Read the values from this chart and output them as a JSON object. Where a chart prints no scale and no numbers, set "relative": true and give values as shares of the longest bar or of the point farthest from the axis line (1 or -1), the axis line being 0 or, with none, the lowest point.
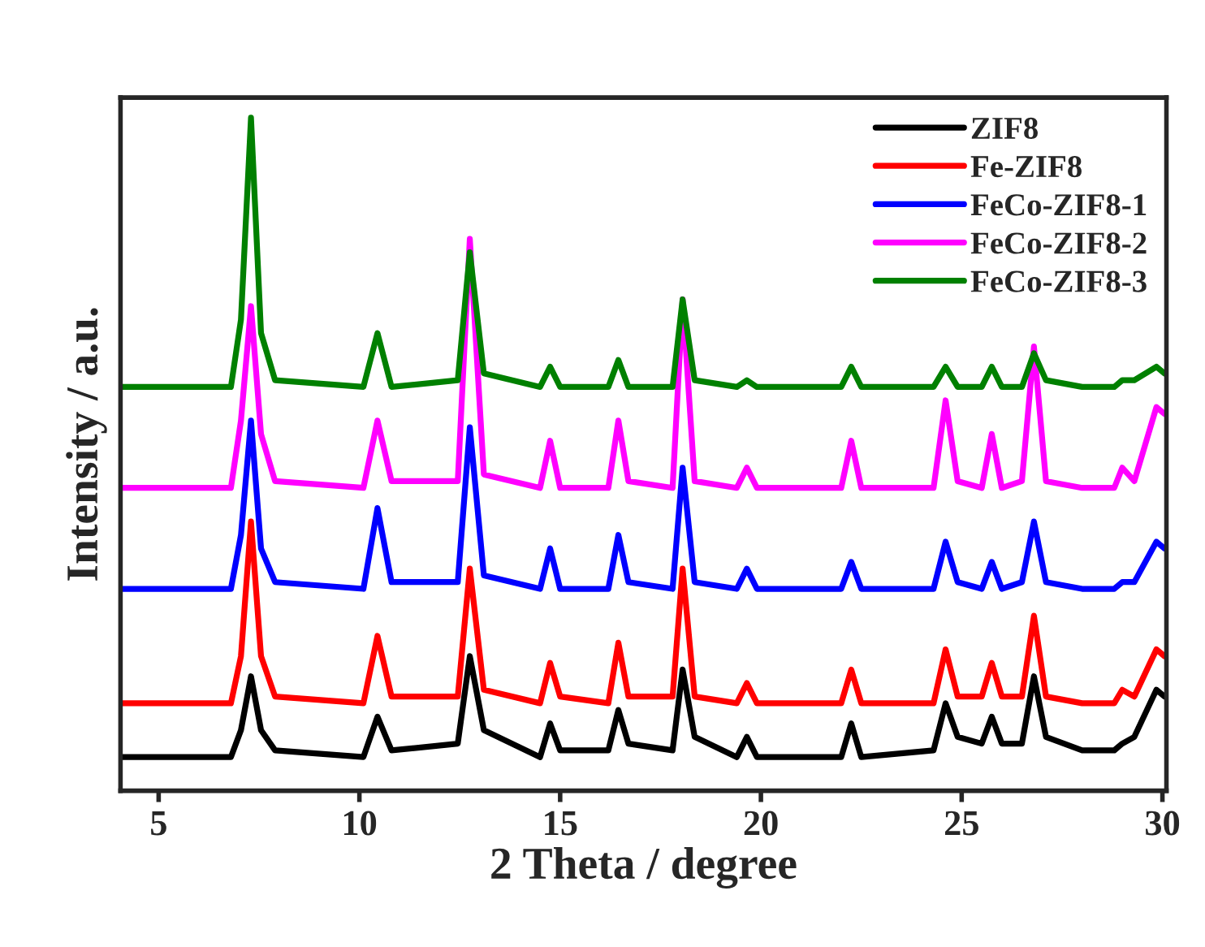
{
  "chart_data": {
    "type": "line",
    "relative": true,
    "xlabel": "2 Theta / degree",
    "ylabel": "Intensity / a.u.",
    "xlim": [
      4.05,
      30.1
    ],
    "xticks": [
      5,
      10,
      15,
      20,
      25,
      30
    ],
    "legend": "top right",
    "grid": false,
    "marker": "none",
    "line_style": "solid",
    "x": [
      4.1,
      6.8,
      7.05,
      7.3,
      7.55,
      7.9,
      10.1,
      10.45,
      10.8,
      12.45,
      12.75,
      13.1,
      14.5,
      14.75,
      15.0,
      16.2,
      16.45,
      16.7,
      17.8,
      18.05,
      18.35,
      19.4,
      19.65,
      19.9,
      22.0,
      22.25,
      22.5,
      24.3,
      24.6,
      24.9,
      25.5,
      25.75,
      26.0,
      26.5,
      26.8,
      27.1,
      28.0,
      28.8,
      29.0,
      29.3,
      29.85,
      30.05
    ],
    "series": [
      {
        "name": "ZIF8",
        "color": "#000000",
        "values": [
          0.05,
          0.05,
          0.09,
          0.17,
          0.09,
          0.06,
          0.05,
          0.11,
          0.06,
          0.07,
          0.2,
          0.09,
          0.05,
          0.1,
          0.06,
          0.06,
          0.12,
          0.07,
          0.06,
          0.18,
          0.08,
          0.05,
          0.08,
          0.05,
          0.05,
          0.1,
          0.05,
          0.06,
          0.13,
          0.08,
          0.07,
          0.11,
          0.07,
          0.07,
          0.17,
          0.08,
          0.06,
          0.06,
          0.07,
          0.08,
          0.15,
          0.14
        ]
      },
      {
        "name": "Fe-ZIF8",
        "color": "#ff0000",
        "values": [
          0.13,
          0.13,
          0.2,
          0.4,
          0.2,
          0.14,
          0.13,
          0.23,
          0.14,
          0.14,
          0.33,
          0.15,
          0.13,
          0.19,
          0.14,
          0.13,
          0.22,
          0.14,
          0.14,
          0.33,
          0.14,
          0.13,
          0.16,
          0.13,
          0.13,
          0.18,
          0.13,
          0.13,
          0.21,
          0.14,
          0.14,
          0.19,
          0.14,
          0.14,
          0.26,
          0.14,
          0.13,
          0.13,
          0.15,
          0.14,
          0.21,
          0.2
        ]
      },
      {
        "name": "FeCo-ZIF8-1",
        "color": "#0000ff",
        "values": [
          0.3,
          0.3,
          0.38,
          0.55,
          0.36,
          0.31,
          0.3,
          0.42,
          0.31,
          0.31,
          0.54,
          0.32,
          0.3,
          0.36,
          0.3,
          0.3,
          0.38,
          0.31,
          0.3,
          0.48,
          0.31,
          0.3,
          0.33,
          0.3,
          0.3,
          0.34,
          0.3,
          0.3,
          0.37,
          0.31,
          0.3,
          0.34,
          0.3,
          0.31,
          0.4,
          0.31,
          0.3,
          0.3,
          0.31,
          0.31,
          0.37,
          0.36
        ]
      },
      {
        "name": "FeCo-ZIF8-2",
        "color": "#ff00ff",
        "values": [
          0.45,
          0.45,
          0.55,
          0.72,
          0.53,
          0.46,
          0.45,
          0.55,
          0.46,
          0.46,
          0.82,
          0.47,
          0.45,
          0.52,
          0.45,
          0.45,
          0.55,
          0.46,
          0.45,
          0.73,
          0.46,
          0.45,
          0.48,
          0.45,
          0.45,
          0.52,
          0.45,
          0.45,
          0.58,
          0.46,
          0.45,
          0.53,
          0.45,
          0.46,
          0.66,
          0.46,
          0.45,
          0.45,
          0.48,
          0.46,
          0.57,
          0.56
        ]
      },
      {
        "name": "FeCo-ZIF8-3",
        "color": "#008000",
        "values": [
          0.6,
          0.6,
          0.7,
          1.0,
          0.68,
          0.61,
          0.6,
          0.68,
          0.6,
          0.61,
          0.8,
          0.62,
          0.6,
          0.63,
          0.6,
          0.6,
          0.64,
          0.6,
          0.6,
          0.73,
          0.61,
          0.6,
          0.61,
          0.6,
          0.6,
          0.63,
          0.6,
          0.6,
          0.63,
          0.6,
          0.6,
          0.63,
          0.6,
          0.6,
          0.65,
          0.61,
          0.6,
          0.6,
          0.61,
          0.61,
          0.63,
          0.62
        ]
      }
    ]
  }
}
